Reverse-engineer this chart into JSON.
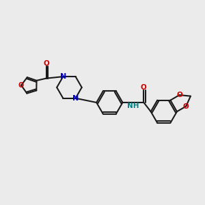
{
  "bg_color": "#ebebeb",
  "bond_color": "#1a1a1a",
  "N_color": "#0000cc",
  "O_color": "#cc0000",
  "NH_color": "#008080",
  "line_width": 1.5,
  "figsize": [
    3.0,
    3.0
  ],
  "dpi": 100,
  "xlim": [
    0,
    10
  ],
  "ylim": [
    0,
    10
  ]
}
